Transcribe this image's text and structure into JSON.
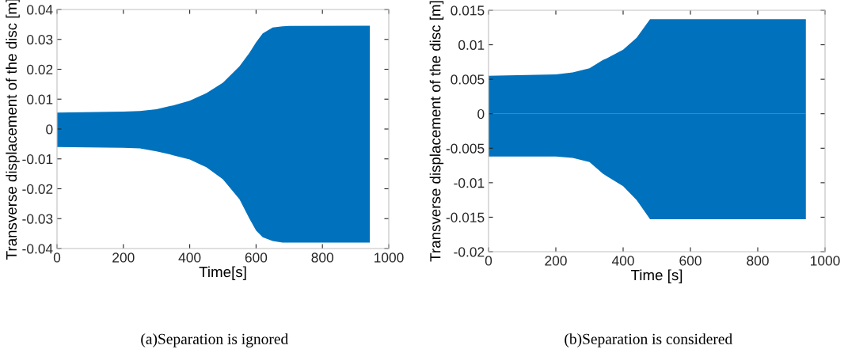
{
  "chart_data": [
    {
      "type": "area",
      "xlabel": "Time[s]",
      "ylabel": "Transverse displacement of the disc [m]",
      "annotations": [
        "(a)Separation is ignored"
      ],
      "x": [
        0,
        200,
        250,
        300,
        340,
        350,
        400,
        450,
        500,
        550,
        580,
        600,
        620,
        650,
        680,
        700,
        943
      ],
      "series": [
        {
          "color": "#0072bd",
          "values": [
            0.0055,
            0.0058,
            0.006,
            0.0066,
            0.0077,
            0.0079,
            0.0095,
            0.012,
            0.0155,
            0.021,
            0.0255,
            0.029,
            0.032,
            0.034,
            0.0344,
            0.0345,
            0.0346
          ]
        },
        {
          "color": "#0072bd",
          "values": [
            -0.006,
            -0.0063,
            -0.0065,
            -0.0075,
            -0.0085,
            -0.0088,
            -0.0102,
            -0.0128,
            -0.0168,
            -0.0235,
            -0.03,
            -0.034,
            -0.0362,
            -0.0375,
            -0.038,
            -0.038,
            -0.038
          ]
        }
      ],
      "xlim": [
        0,
        1000
      ],
      "xticks": [
        0,
        200,
        400,
        600,
        800,
        1000
      ],
      "ylim": [
        -0.04,
        0.04
      ],
      "yticks": [
        -0.04,
        -0.03,
        -0.02,
        -0.01,
        0,
        0.01,
        0.02,
        0.03,
        0.04
      ],
      "grid": false,
      "legend": false
    },
    {
      "type": "area",
      "xlabel": "Time [s]",
      "ylabel": "Transverse displacement of the disc [m]",
      "annotations": [
        "(b)Separation is considered"
      ],
      "x": [
        0,
        200,
        250,
        300,
        340,
        350,
        400,
        440,
        480,
        943
      ],
      "series": [
        {
          "color": "#0072bd",
          "values": [
            0.0055,
            0.0057,
            0.006,
            0.0066,
            0.0078,
            0.008,
            0.0093,
            0.011,
            0.0137,
            0.0137
          ]
        },
        {
          "color": "#0072bd",
          "values": [
            -0.0062,
            -0.0062,
            -0.0064,
            -0.007,
            -0.0087,
            -0.009,
            -0.0105,
            -0.0125,
            -0.0153,
            -0.0153
          ]
        }
      ],
      "xlim": [
        0,
        1000
      ],
      "xticks": [
        0,
        200,
        400,
        600,
        800,
        1000
      ],
      "ylim": [
        -0.02,
        0.015
      ],
      "yticks": [
        -0.02,
        -0.015,
        -0.01,
        -0.005,
        0,
        0.005,
        0.01,
        0.015
      ],
      "grid": false,
      "legend": false
    }
  ]
}
